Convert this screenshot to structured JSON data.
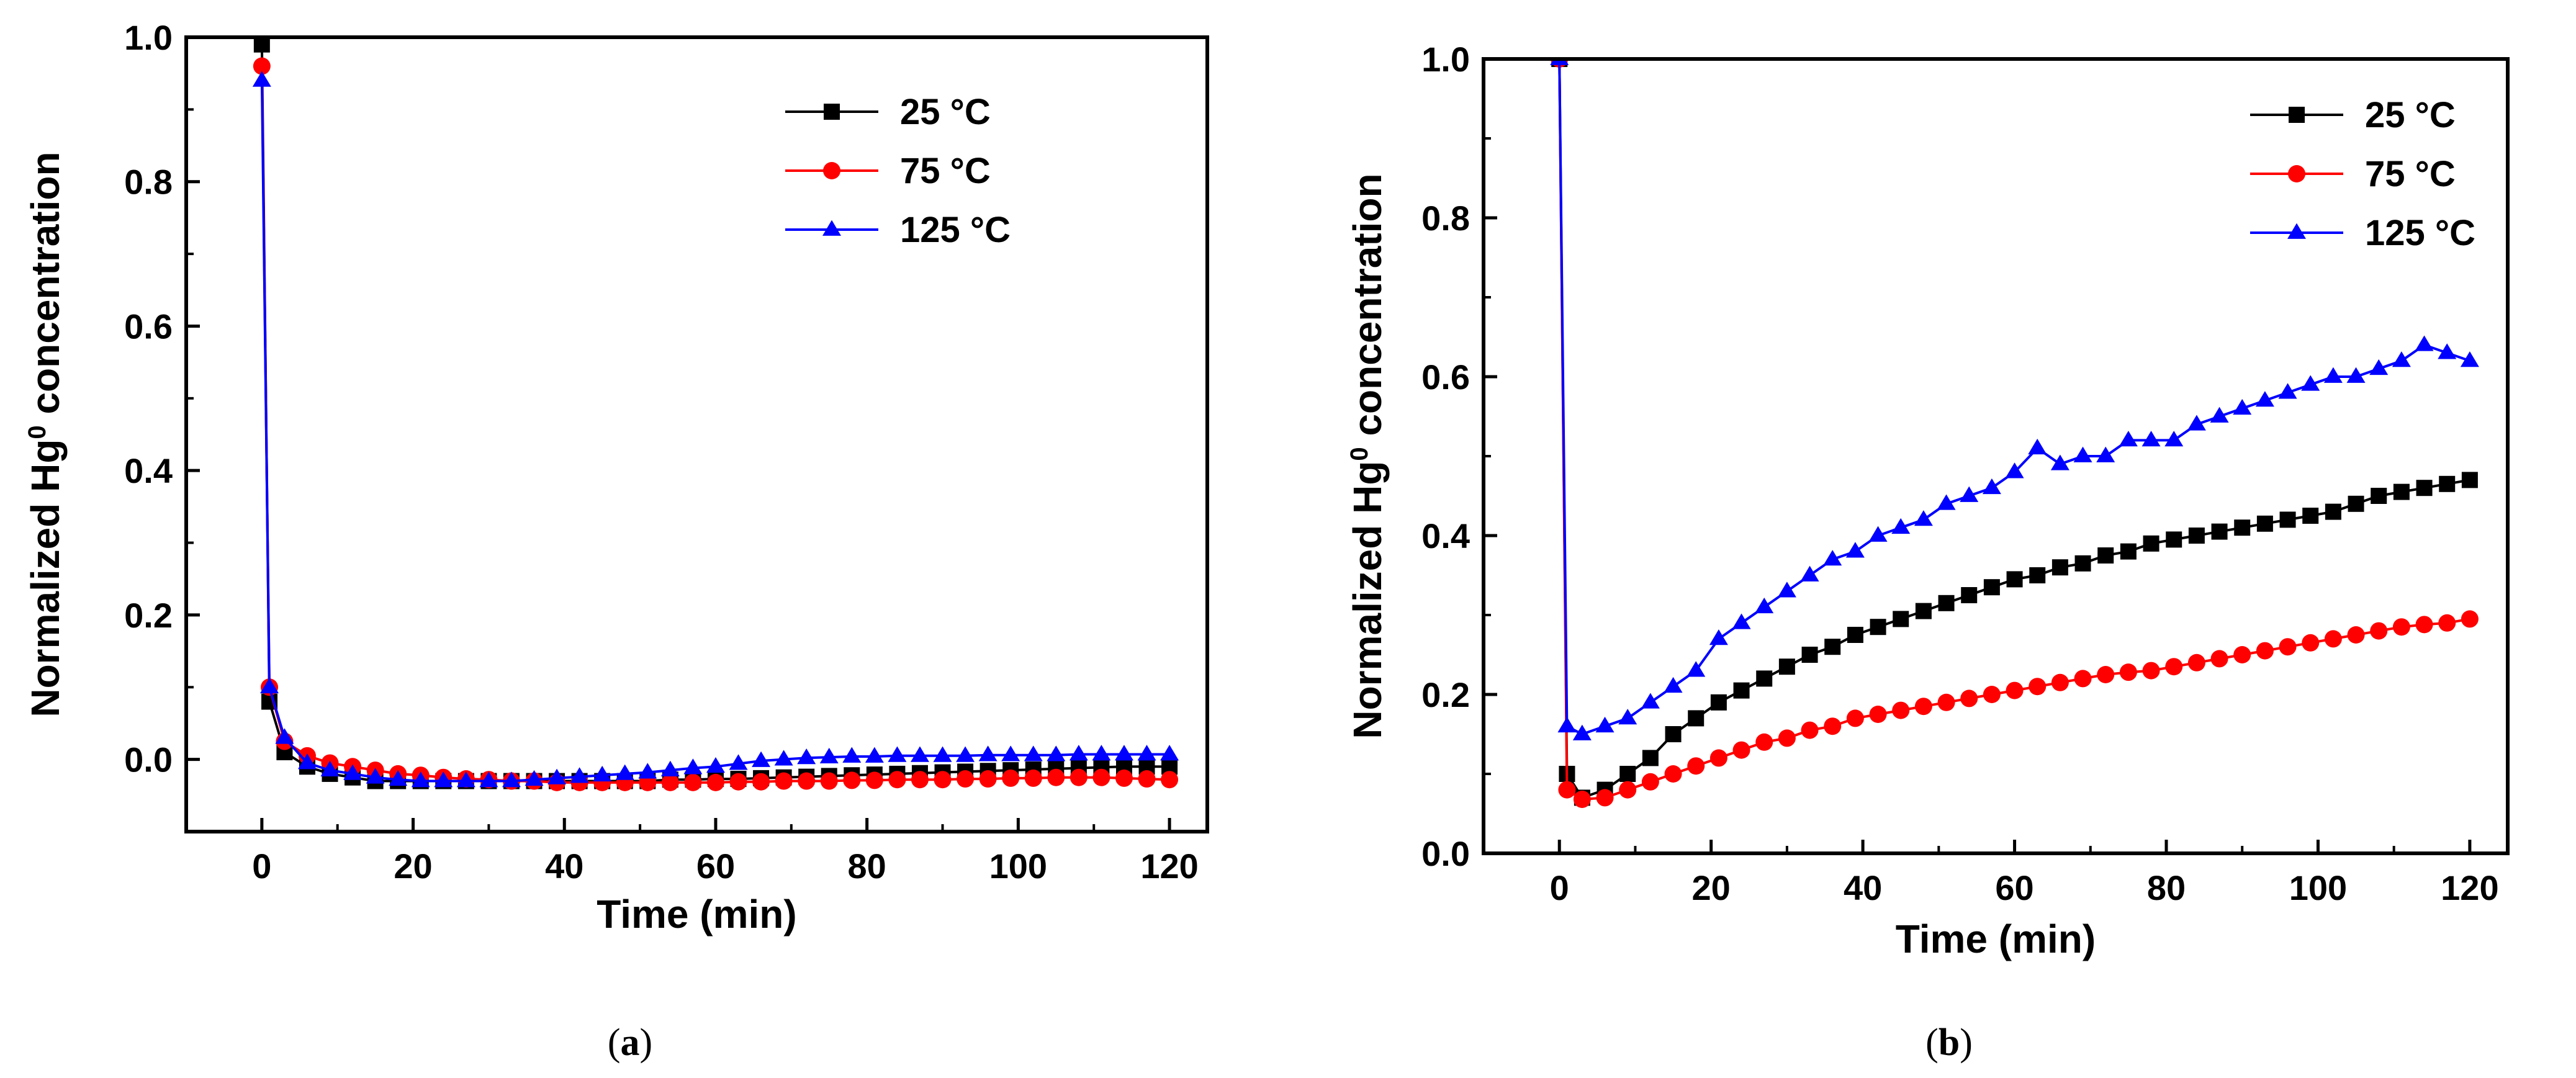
{
  "chart_data": [
    {
      "type": "line",
      "panel": "a",
      "caption_open": "(",
      "caption_letter": "a",
      "caption_close": ")",
      "title": "",
      "xlabel": "Time (min)",
      "ylabel_main": "Normalized Hg",
      "ylabel_sup": "0",
      "ylabel_end": " concentration",
      "xlim": [
        -10,
        125
      ],
      "ylim": [
        -0.1,
        1.0
      ],
      "xticks": [
        0,
        20,
        40,
        60,
        80,
        100,
        120
      ],
      "xtick_labels": [
        "0",
        "20",
        "40",
        "60",
        "80",
        "100",
        "120"
      ],
      "yticks": [
        0.0,
        0.2,
        0.4,
        0.6,
        0.8,
        1.0
      ],
      "ytick_labels": [
        "0.0",
        "0.2",
        "0.4",
        "0.6",
        "0.8",
        "1.0"
      ],
      "legend_position": "top-right",
      "series": [
        {
          "name": "25 °C",
          "color": "#000000",
          "marker": "square",
          "x": [
            0,
            1,
            3,
            6,
            9,
            12,
            15,
            18,
            21,
            24,
            27,
            30,
            33,
            36,
            39,
            42,
            45,
            48,
            51,
            54,
            57,
            60,
            63,
            66,
            69,
            72,
            75,
            78,
            81,
            84,
            87,
            90,
            93,
            96,
            99,
            102,
            105,
            108,
            111,
            114,
            117,
            120
          ],
          "y": [
            0.99,
            0.08,
            0.01,
            -0.01,
            -0.02,
            -0.025,
            -0.03,
            -0.03,
            -0.03,
            -0.03,
            -0.03,
            -0.03,
            -0.03,
            -0.03,
            -0.03,
            -0.03,
            -0.03,
            -0.03,
            -0.03,
            -0.028,
            -0.028,
            -0.027,
            -0.027,
            -0.026,
            -0.025,
            -0.024,
            -0.023,
            -0.022,
            -0.021,
            -0.02,
            -0.019,
            -0.018,
            -0.017,
            -0.016,
            -0.015,
            -0.014,
            -0.013,
            -0.012,
            -0.011,
            -0.01,
            -0.01,
            -0.01
          ]
        },
        {
          "name": "75 °C",
          "color": "#ff0000",
          "marker": "circle",
          "x": [
            0,
            1,
            3,
            6,
            9,
            12,
            15,
            18,
            21,
            24,
            27,
            30,
            33,
            36,
            39,
            42,
            45,
            48,
            51,
            54,
            57,
            60,
            63,
            66,
            69,
            72,
            75,
            78,
            81,
            84,
            87,
            90,
            93,
            96,
            99,
            102,
            105,
            108,
            111,
            114,
            117,
            120
          ],
          "y": [
            0.96,
            0.1,
            0.025,
            0.005,
            -0.005,
            -0.01,
            -0.015,
            -0.02,
            -0.022,
            -0.025,
            -0.027,
            -0.028,
            -0.03,
            -0.03,
            -0.032,
            -0.032,
            -0.032,
            -0.032,
            -0.032,
            -0.032,
            -0.032,
            -0.032,
            -0.031,
            -0.031,
            -0.03,
            -0.03,
            -0.03,
            -0.029,
            -0.029,
            -0.028,
            -0.028,
            -0.028,
            -0.027,
            -0.027,
            -0.026,
            -0.026,
            -0.025,
            -0.025,
            -0.025,
            -0.026,
            -0.027,
            -0.028
          ]
        },
        {
          "name": "125 °C",
          "color": "#0000ff",
          "marker": "triangle",
          "x": [
            0,
            1,
            3,
            6,
            9,
            12,
            15,
            18,
            21,
            24,
            27,
            30,
            33,
            36,
            39,
            42,
            45,
            48,
            51,
            54,
            57,
            60,
            63,
            66,
            69,
            72,
            75,
            78,
            81,
            84,
            87,
            90,
            93,
            96,
            99,
            102,
            105,
            108,
            111,
            114,
            117,
            120
          ],
          "y": [
            0.94,
            0.1,
            0.03,
            -0.005,
            -0.015,
            -0.02,
            -0.025,
            -0.028,
            -0.03,
            -0.03,
            -0.03,
            -0.03,
            -0.03,
            -0.028,
            -0.026,
            -0.024,
            -0.022,
            -0.02,
            -0.018,
            -0.015,
            -0.012,
            -0.01,
            -0.006,
            -0.002,
            0.0,
            0.002,
            0.003,
            0.004,
            0.004,
            0.005,
            0.005,
            0.005,
            0.005,
            0.006,
            0.006,
            0.006,
            0.006,
            0.007,
            0.007,
            0.007,
            0.007,
            0.007
          ]
        }
      ]
    },
    {
      "type": "line",
      "panel": "b",
      "caption_open": "(",
      "caption_letter": "b",
      "caption_close": ")",
      "title": "",
      "xlabel": "Time (min)",
      "ylabel_main": "Normalized Hg",
      "ylabel_sup": "0",
      "ylabel_end": " concentration",
      "xlim": [
        -10,
        125
      ],
      "ylim": [
        0.0,
        1.0
      ],
      "xticks": [
        0,
        20,
        40,
        60,
        80,
        100,
        120
      ],
      "xtick_labels": [
        "0",
        "20",
        "40",
        "60",
        "80",
        "100",
        "120"
      ],
      "yticks": [
        0.0,
        0.2,
        0.4,
        0.6,
        0.8,
        1.0
      ],
      "ytick_labels": [
        "0.0",
        "0.2",
        "0.4",
        "0.6",
        "0.8",
        "1.0"
      ],
      "legend_position": "top-right",
      "series": [
        {
          "name": "25 °C",
          "color": "#000000",
          "marker": "square",
          "x": [
            0,
            1,
            3,
            6,
            9,
            12,
            15,
            18,
            21,
            24,
            27,
            30,
            33,
            36,
            39,
            42,
            45,
            48,
            51,
            54,
            57,
            60,
            63,
            66,
            69,
            72,
            75,
            78,
            81,
            84,
            87,
            90,
            93,
            96,
            99,
            102,
            105,
            108,
            111,
            114,
            117,
            120
          ],
          "y": [
            1.0,
            0.1,
            0.07,
            0.08,
            0.1,
            0.12,
            0.15,
            0.17,
            0.19,
            0.205,
            0.22,
            0.235,
            0.25,
            0.26,
            0.275,
            0.285,
            0.295,
            0.305,
            0.315,
            0.325,
            0.335,
            0.345,
            0.35,
            0.36,
            0.365,
            0.375,
            0.38,
            0.39,
            0.395,
            0.4,
            0.405,
            0.41,
            0.415,
            0.42,
            0.425,
            0.43,
            0.44,
            0.45,
            0.455,
            0.46,
            0.465,
            0.47
          ]
        },
        {
          "name": "75 °C",
          "color": "#ff0000",
          "marker": "circle",
          "x": [
            0,
            1,
            3,
            6,
            9,
            12,
            15,
            18,
            21,
            24,
            27,
            30,
            33,
            36,
            39,
            42,
            45,
            48,
            51,
            54,
            57,
            60,
            63,
            66,
            69,
            72,
            75,
            78,
            81,
            84,
            87,
            90,
            93,
            96,
            99,
            102,
            105,
            108,
            111,
            114,
            117,
            120
          ],
          "y": [
            1.0,
            0.08,
            0.068,
            0.07,
            0.08,
            0.09,
            0.1,
            0.11,
            0.12,
            0.13,
            0.14,
            0.145,
            0.155,
            0.16,
            0.17,
            0.175,
            0.18,
            0.185,
            0.19,
            0.195,
            0.2,
            0.205,
            0.21,
            0.215,
            0.22,
            0.225,
            0.228,
            0.23,
            0.235,
            0.24,
            0.245,
            0.25,
            0.255,
            0.26,
            0.265,
            0.27,
            0.275,
            0.28,
            0.285,
            0.288,
            0.29,
            0.295
          ]
        },
        {
          "name": "125 °C",
          "color": "#0000ff",
          "marker": "triangle",
          "x": [
            0,
            1,
            3,
            6,
            9,
            12,
            15,
            18,
            21,
            24,
            27,
            30,
            33,
            36,
            39,
            42,
            45,
            48,
            51,
            54,
            57,
            60,
            63,
            66,
            69,
            72,
            75,
            78,
            81,
            84,
            87,
            90,
            93,
            96,
            99,
            102,
            105,
            108,
            111,
            114,
            117,
            120
          ],
          "y": [
            1.0,
            0.16,
            0.15,
            0.16,
            0.17,
            0.19,
            0.21,
            0.23,
            0.27,
            0.29,
            0.31,
            0.33,
            0.35,
            0.37,
            0.38,
            0.4,
            0.41,
            0.42,
            0.44,
            0.45,
            0.46,
            0.48,
            0.51,
            0.49,
            0.5,
            0.5,
            0.52,
            0.52,
            0.52,
            0.54,
            0.55,
            0.56,
            0.57,
            0.58,
            0.59,
            0.6,
            0.6,
            0.61,
            0.62,
            0.64,
            0.63,
            0.62
          ]
        }
      ]
    }
  ]
}
